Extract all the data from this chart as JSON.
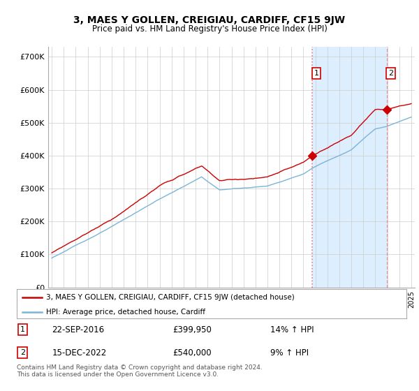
{
  "title": "3, MAES Y GOLLEN, CREIGIAU, CARDIFF, CF15 9JW",
  "subtitle": "Price paid vs. HM Land Registry's House Price Index (HPI)",
  "ylim": [
    0,
    730000
  ],
  "yticks": [
    0,
    100000,
    200000,
    300000,
    400000,
    500000,
    600000,
    700000
  ],
  "ytick_labels": [
    "£0",
    "£100K",
    "£200K",
    "£300K",
    "£400K",
    "£500K",
    "£600K",
    "£700K"
  ],
  "hpi_color": "#7ab4d8",
  "price_color": "#cc0000",
  "vline_color": "#e88080",
  "shade_color": "#ddeeff",
  "grid_color": "#cccccc",
  "bg_color": "#ffffff",
  "legend_label_red": "3, MAES Y GOLLEN, CREIGIAU, CARDIFF, CF15 9JW (detached house)",
  "legend_label_blue": "HPI: Average price, detached house, Cardiff",
  "annotation1_label": "1",
  "annotation1_date": "22-SEP-2016",
  "annotation1_price": "£399,950",
  "annotation1_hpi": "14% ↑ HPI",
  "annotation2_label": "2",
  "annotation2_date": "15-DEC-2022",
  "annotation2_price": "£540,000",
  "annotation2_hpi": "9% ↑ HPI",
  "footnote": "Contains HM Land Registry data © Crown copyright and database right 2024.\nThis data is licensed under the Open Government Licence v3.0.",
  "sale1_year": 2016.72,
  "sale1_value": 399950,
  "sale2_year": 2022.95,
  "sale2_value": 540000,
  "xmin": 1995,
  "xmax": 2025
}
